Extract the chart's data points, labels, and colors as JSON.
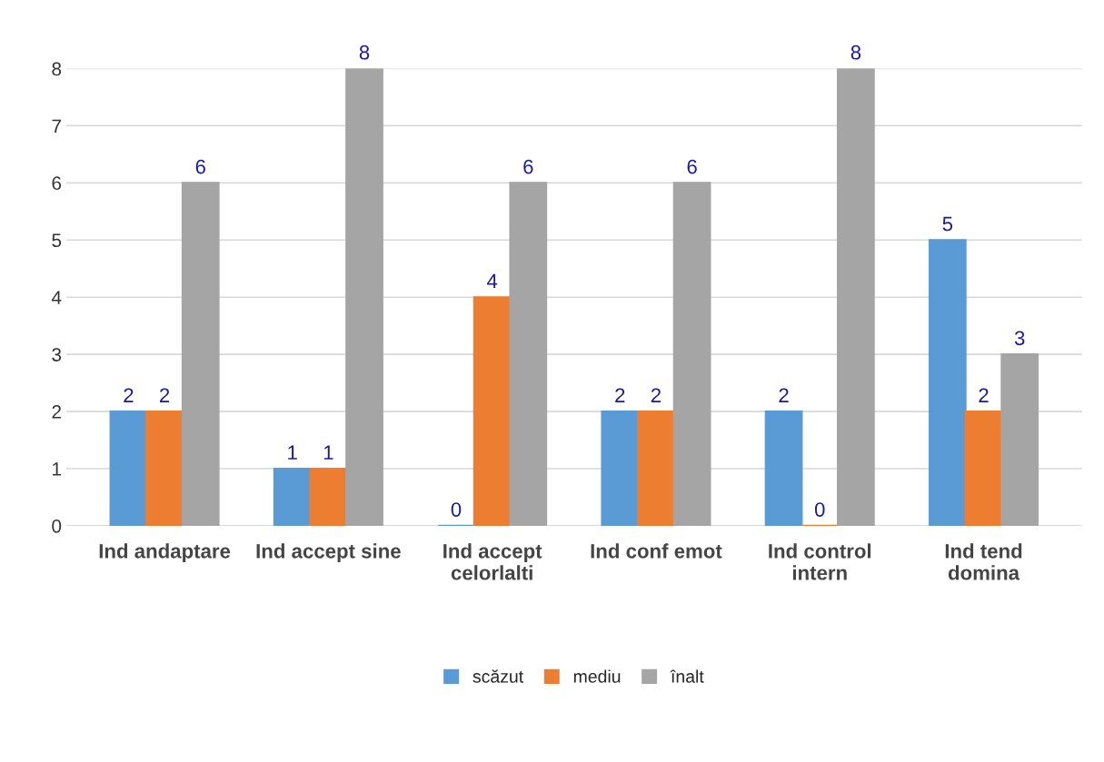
{
  "chart_data": {
    "type": "bar",
    "categories": [
      "Ind andaptare",
      "Ind accept sine",
      "Ind accept\ncelorlalti",
      "Ind conf emot",
      "Ind control\nintern",
      "Ind tend\ndomina"
    ],
    "series": [
      {
        "name": "scăzut",
        "color": "#5b9bd5",
        "values": [
          2,
          1,
          0,
          2,
          2,
          5
        ]
      },
      {
        "name": "mediu",
        "color": "#ed7d31",
        "values": [
          2,
          1,
          4,
          2,
          0,
          2
        ]
      },
      {
        "name": "înalt",
        "color": "#a5a5a5",
        "values": [
          6,
          8,
          6,
          6,
          8,
          3
        ]
      }
    ],
    "ylim": [
      0,
      8
    ],
    "yticks": [
      0,
      1,
      2,
      3,
      4,
      5,
      6,
      7,
      8
    ],
    "grid": "y",
    "legend": "bottom",
    "data_labels": true
  }
}
